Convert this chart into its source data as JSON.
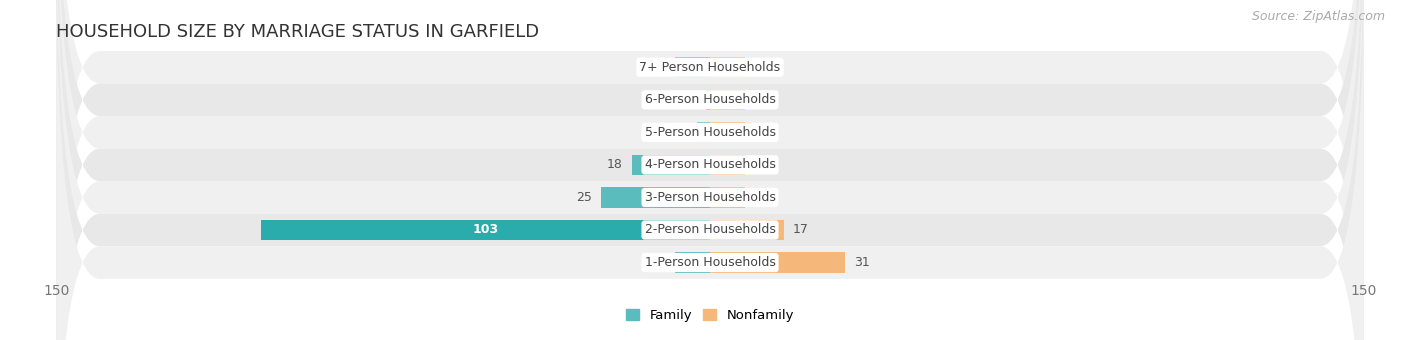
{
  "title": "HOUSEHOLD SIZE BY MARRIAGE STATUS IN GARFIELD",
  "source": "Source: ZipAtlas.com",
  "categories": [
    "7+ Person Households",
    "6-Person Households",
    "5-Person Households",
    "4-Person Households",
    "3-Person Households",
    "2-Person Households",
    "1-Person Households"
  ],
  "family_values": [
    0,
    1,
    3,
    18,
    25,
    103,
    0
  ],
  "nonfamily_values": [
    0,
    0,
    0,
    0,
    0,
    17,
    31
  ],
  "family_color": "#5bbcbe",
  "nonfamily_color": "#f5b87a",
  "family_color_large": "#2aacac",
  "nonfamily_color_large": "#f0a050",
  "axis_limit": 150,
  "bar_height": 0.62,
  "label_color": "#555555",
  "title_fontsize": 13,
  "source_fontsize": 9,
  "tick_fontsize": 10,
  "label_fontsize": 9,
  "zero_stub": 8
}
